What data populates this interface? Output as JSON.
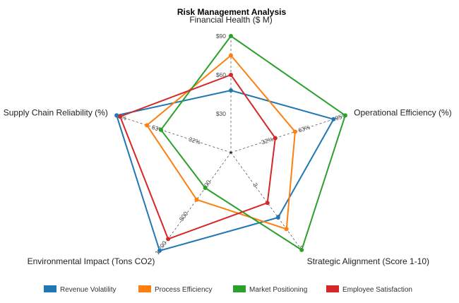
{
  "chart_data": {
    "type": "radar",
    "title": "Risk Management Analysis",
    "axes": [
      "Financial Health ($ M)",
      "Operational Efficiency (%)",
      "Strategic Alignment (Score 1-10)",
      "Environmental Impact (Tons CO2)",
      "Supply Chain Reliability (%)"
    ],
    "ticks": [
      [
        "$30",
        "$60",
        "$90"
      ],
      [
        "32%",
        "63%",
        "95%"
      ],
      [
        "3",
        "6",
        "9"
      ],
      [
        "400",
        "800",
        "1,200"
      ],
      [
        "32%",
        "63%",
        "95%"
      ]
    ],
    "scale_max": [
      90,
      95,
      9,
      1200,
      95
    ],
    "series": [
      {
        "name": "Revenue Volatility",
        "color": "#1f77b4",
        "values": [
          48,
          88,
          6.2,
          1250,
          98
        ]
      },
      {
        "name": "Process Efficiency",
        "color": "#ff7f0e",
        "values": [
          75,
          55,
          7.3,
          600,
          72
        ]
      },
      {
        "name": "Market Positioning",
        "color": "#2ca02c",
        "values": [
          90,
          98,
          9.3,
          450,
          60
        ]
      },
      {
        "name": "Employee Satisfaction",
        "color": "#d62728",
        "values": [
          60,
          38,
          4.8,
          1100,
          95
        ]
      }
    ],
    "legend_position": "bottom",
    "grid": true
  }
}
